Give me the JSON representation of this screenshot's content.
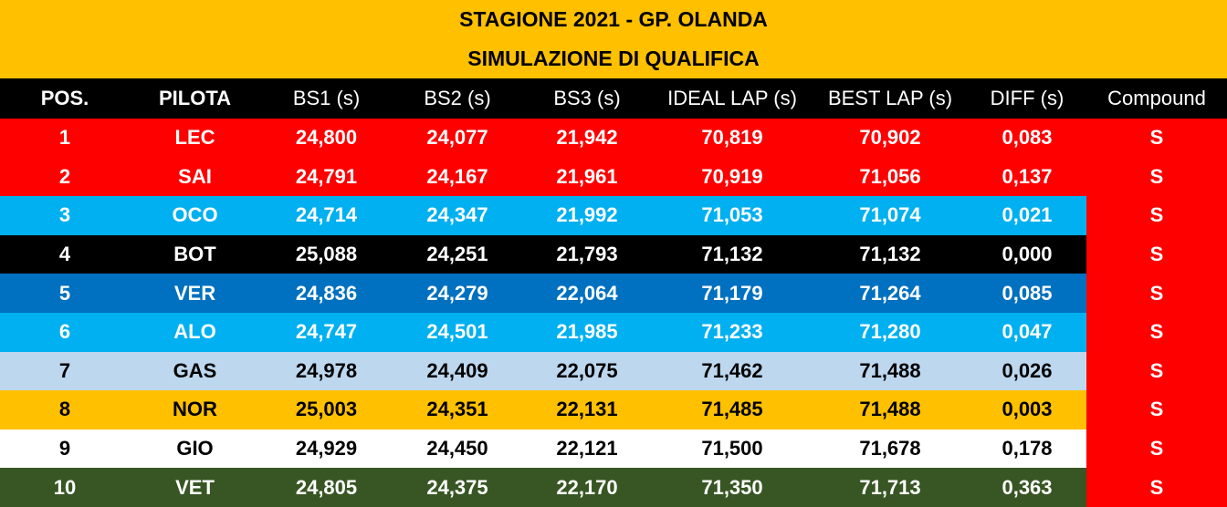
{
  "header": {
    "title": "STAGIONE 2021 - GP. OLANDA",
    "subtitle": "SIMULAZIONE DI QUALIFICA"
  },
  "table": {
    "columns": [
      "POS.",
      "PILOTA",
      "BS1 (s)",
      "BS2 (s)",
      "BS3 (s)",
      "IDEAL LAP (s)",
      "BEST LAP (s)",
      "DIFF (s)",
      "Compound"
    ],
    "rows": [
      [
        "1",
        "LEC",
        "24,800",
        "24,077",
        "21,942",
        "70,819",
        "70,902",
        "0,083",
        "S"
      ],
      [
        "2",
        "SAI",
        "24,791",
        "24,167",
        "21,961",
        "70,919",
        "71,056",
        "0,137",
        "S"
      ],
      [
        "3",
        "OCO",
        "24,714",
        "24,347",
        "21,992",
        "71,053",
        "71,074",
        "0,021",
        "S"
      ],
      [
        "4",
        "BOT",
        "25,088",
        "24,251",
        "21,793",
        "71,132",
        "71,132",
        "0,000",
        "S"
      ],
      [
        "5",
        "VER",
        "24,836",
        "24,279",
        "22,064",
        "71,179",
        "71,264",
        "0,085",
        "S"
      ],
      [
        "6",
        "ALO",
        "24,747",
        "24,501",
        "21,985",
        "71,233",
        "71,280",
        "0,047",
        "S"
      ],
      [
        "7",
        "GAS",
        "24,978",
        "24,409",
        "22,075",
        "71,462",
        "71,488",
        "0,026",
        "S"
      ],
      [
        "8",
        "NOR",
        "25,003",
        "24,351",
        "22,131",
        "71,485",
        "71,488",
        "0,003",
        "S"
      ],
      [
        "9",
        "GIO",
        "24,929",
        "24,450",
        "22,121",
        "71,500",
        "71,678",
        "0,178",
        "S"
      ],
      [
        "10",
        "VET",
        "24,805",
        "24,375",
        "22,170",
        "71,350",
        "71,713",
        "0,363",
        "S"
      ]
    ]
  }
}
